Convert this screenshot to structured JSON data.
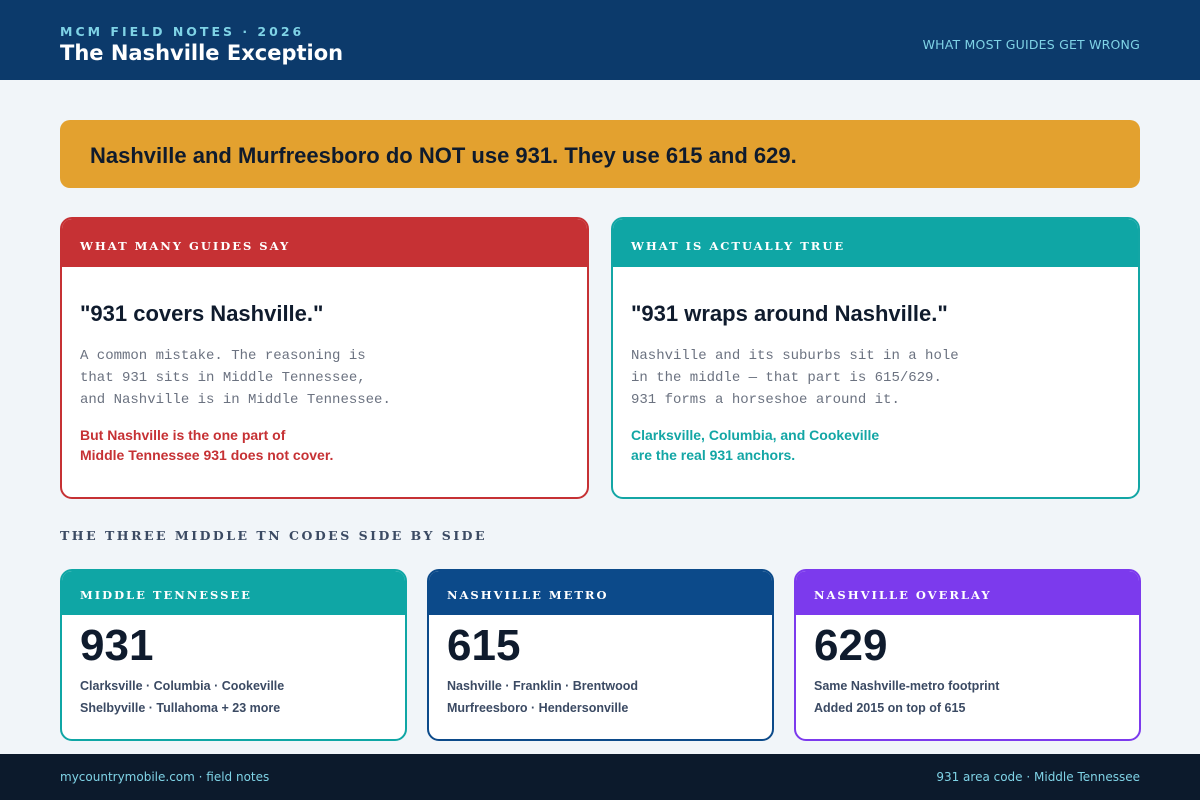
{
  "header": {
    "kicker": "MCM FIELD NOTES · 2026",
    "title": "The Nashville Exception",
    "right_label": "WHAT MOST GUIDES GET WRONG"
  },
  "banner": {
    "text": "Nashville and Murfreesboro do NOT use 931. They use 615 and 629."
  },
  "myth": {
    "label": "WHAT MANY GUIDES SAY",
    "quote": "\"931 covers Nashville.\"",
    "body": [
      "A common mistake. The reasoning is",
      "that 931 sits in Middle Tennessee,",
      "and Nashville is in Middle Tennessee."
    ],
    "note": [
      "But Nashville is the one part of",
      "Middle Tennessee 931 does not cover."
    ]
  },
  "fact": {
    "label": "WHAT IS ACTUALLY TRUE",
    "quote": "\"931 wraps around Nashville.\"",
    "body": [
      "Nashville and its suburbs sit in a hole",
      "in the middle — that part is 615/629.",
      "931 forms a horseshoe around it."
    ],
    "note": [
      "Clarksville, Columbia, and Cookeville",
      "are the real 931 anchors."
    ]
  },
  "section_title": "THE THREE MIDDLE TN CODES SIDE BY SIDE",
  "codes": [
    {
      "label": "MIDDLE TENNESSEE",
      "code": "931",
      "lines": [
        "Clarksville · Columbia · Cookeville",
        "Shelbyville · Tullahoma + 23 more"
      ],
      "color": "#0fa6a5"
    },
    {
      "label": "NASHVILLE METRO",
      "code": "615",
      "lines": [
        "Nashville · Franklin · Brentwood",
        "Murfreesboro · Hendersonville"
      ],
      "color": "#0c4a8a"
    },
    {
      "label": "NASHVILLE OVERLAY",
      "code": "629",
      "lines": [
        "Same Nashville-metro footprint",
        "Added 2015 on top of 615"
      ],
      "color": "#7c3aed"
    }
  ],
  "footer": {
    "left": "mycountrymobile.com · field notes",
    "right": "931 area code · Middle Tennessee"
  },
  "colors": {
    "header_bg": "#0c3a6b",
    "accent_cyan": "#7fd3e6",
    "banner": "#e3a12f",
    "myth": "#c63134",
    "fact": "#13a6a5",
    "footer_bg": "#0c1a2c"
  }
}
